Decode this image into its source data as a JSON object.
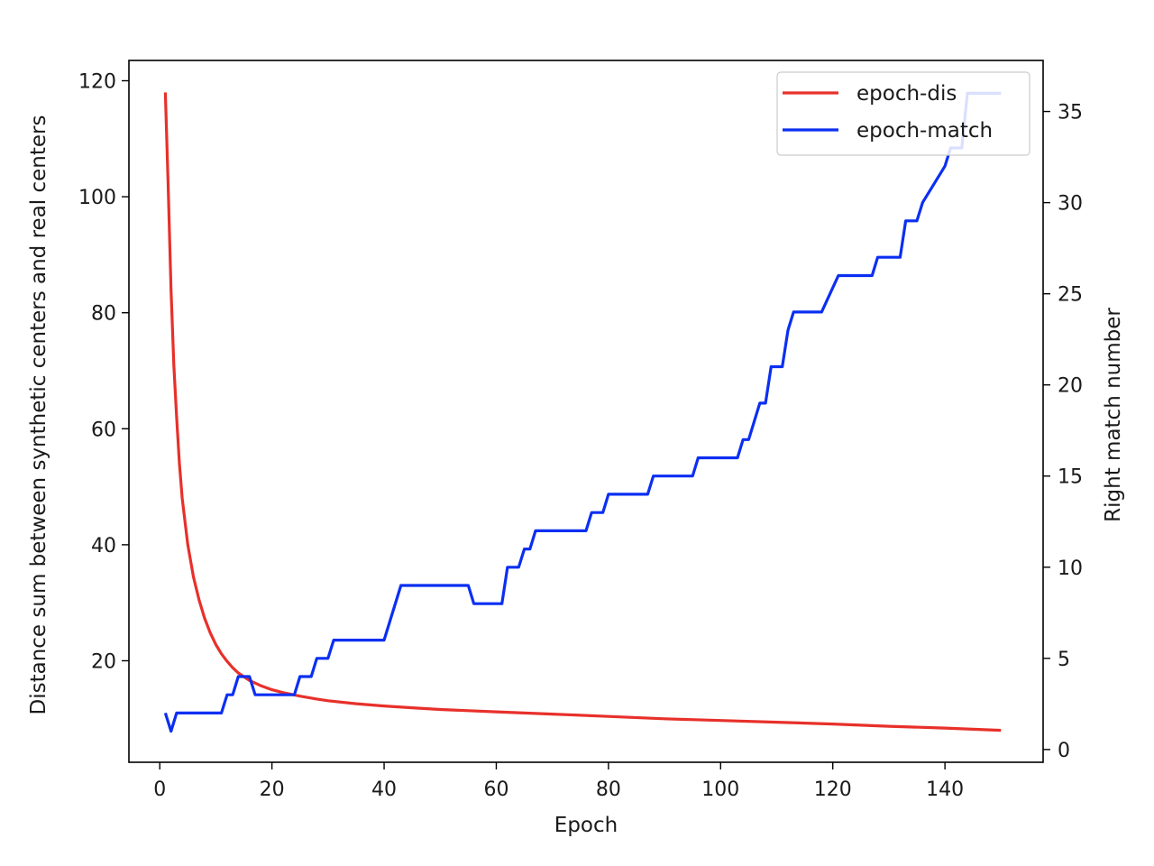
{
  "chart_data": {
    "type": "line",
    "title": "",
    "xlabel": "Epoch",
    "ylabel_left": "Distance sum between synthetic centers and real centers",
    "ylabel_right": "Right match number",
    "xlim": [
      -5.5,
      157.5
    ],
    "ylim_left": [
      2.5,
      123.5
    ],
    "ylim_right": [
      -0.7,
      37.8
    ],
    "x_ticks": [
      0,
      20,
      40,
      60,
      80,
      100,
      120,
      140
    ],
    "y_left_ticks": [
      20,
      40,
      60,
      80,
      100,
      120
    ],
    "y_right_ticks": [
      0,
      5,
      10,
      15,
      20,
      25,
      30,
      35
    ],
    "grid": false,
    "legend_position": "top-right",
    "series": [
      {
        "name": "epoch-dis",
        "axis": "left",
        "color": "#e8302a",
        "x": [
          1,
          1.5,
          2,
          2.5,
          3,
          3.5,
          4,
          5,
          6,
          7,
          8,
          9,
          10,
          11,
          12,
          13,
          14,
          16,
          18,
          20,
          22,
          25,
          28,
          30,
          35,
          40,
          45,
          50,
          55,
          60,
          70,
          80,
          90,
          100,
          110,
          120,
          130,
          140,
          150
        ],
        "values": [
          118,
          102,
          84,
          71,
          62,
          54,
          48,
          40,
          34.5,
          30.5,
          27.3,
          24.8,
          22.8,
          21.2,
          19.9,
          18.8,
          17.9,
          16.6,
          15.7,
          15.0,
          14.5,
          13.9,
          13.4,
          13.1,
          12.6,
          12.2,
          11.9,
          11.6,
          11.4,
          11.2,
          10.8,
          10.4,
          10.0,
          9.7,
          9.4,
          9.1,
          8.7,
          8.4,
          8.0
        ]
      },
      {
        "name": "epoch-match",
        "axis": "right",
        "color": "#0b2ff2",
        "x": [
          1,
          2,
          3,
          4,
          11,
          12,
          13,
          14,
          16,
          17,
          18,
          24,
          25,
          27,
          28,
          30,
          31,
          35,
          40,
          43,
          50,
          55,
          56,
          61,
          62,
          64,
          65,
          66,
          67,
          76,
          77,
          79,
          80,
          87,
          88,
          95,
          96,
          103,
          104,
          105,
          107,
          108,
          109,
          111,
          112,
          113,
          114,
          117,
          118,
          121,
          127,
          128,
          132,
          133,
          135,
          136,
          140,
          141,
          143,
          144,
          150
        ],
        "values": [
          2,
          1,
          2,
          2,
          2,
          3,
          3,
          4,
          4,
          3,
          3,
          3,
          4,
          4,
          5,
          5,
          6,
          6,
          6,
          9,
          9,
          9,
          8,
          8,
          10,
          10,
          11,
          11,
          12,
          12,
          13,
          13,
          14,
          14,
          15,
          15,
          16,
          16,
          17,
          17,
          19,
          19,
          21,
          21,
          23,
          24,
          24,
          24,
          24,
          26,
          26,
          27,
          27,
          29,
          29,
          30,
          32,
          33,
          33,
          36,
          36
        ]
      }
    ]
  }
}
